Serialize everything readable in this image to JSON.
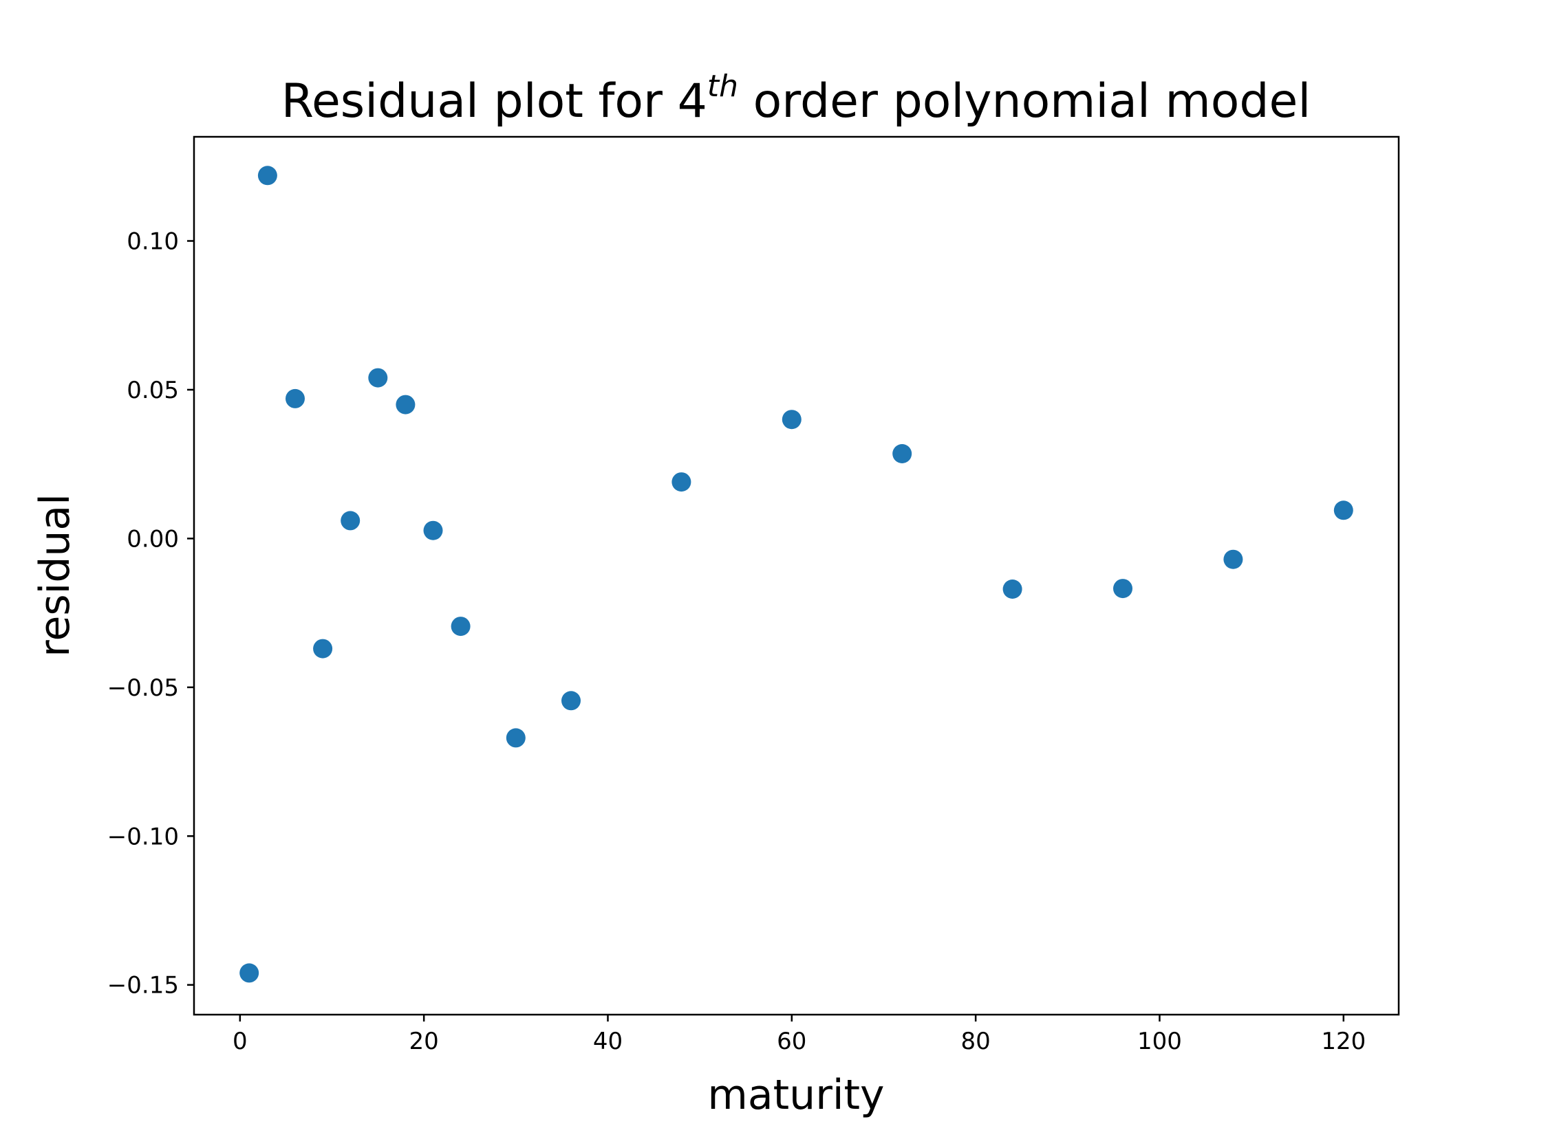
{
  "chart_data": {
    "type": "scatter",
    "title": {
      "prefix": "Residual plot for 4",
      "superscript": "th",
      "suffix": " order polynomial model"
    },
    "xlabel": "maturity",
    "ylabel": "residual",
    "xlim": [
      -5,
      126
    ],
    "ylim": [
      -0.16,
      0.135
    ],
    "xticks": [
      0,
      20,
      40,
      60,
      80,
      100,
      120
    ],
    "xtick_labels": [
      "0",
      "20",
      "40",
      "60",
      "80",
      "100",
      "120"
    ],
    "yticks": [
      0.1,
      0.05,
      0.0,
      -0.05,
      -0.1,
      -0.15
    ],
    "ytick_labels": [
      "0.10",
      "0.05",
      "0.00",
      "−0.05",
      "−0.10",
      "−0.15"
    ],
    "grid": false,
    "series": [
      {
        "color": "#1f77b4",
        "points": [
          {
            "x": 1,
            "y": -0.146
          },
          {
            "x": 3,
            "y": 0.122
          },
          {
            "x": 6,
            "y": 0.047
          },
          {
            "x": 9,
            "y": -0.037
          },
          {
            "x": 12,
            "y": 0.006
          },
          {
            "x": 15,
            "y": 0.054
          },
          {
            "x": 18,
            "y": 0.045
          },
          {
            "x": 21,
            "y": 0.0027
          },
          {
            "x": 24,
            "y": -0.0295
          },
          {
            "x": 30,
            "y": -0.067
          },
          {
            "x": 36,
            "y": -0.0545
          },
          {
            "x": 48,
            "y": 0.019
          },
          {
            "x": 60,
            "y": 0.04
          },
          {
            "x": 72,
            "y": 0.0285
          },
          {
            "x": 84,
            "y": -0.017
          },
          {
            "x": 96,
            "y": -0.0168
          },
          {
            "x": 108,
            "y": -0.007
          },
          {
            "x": 120,
            "y": 0.0095
          }
        ]
      }
    ]
  }
}
